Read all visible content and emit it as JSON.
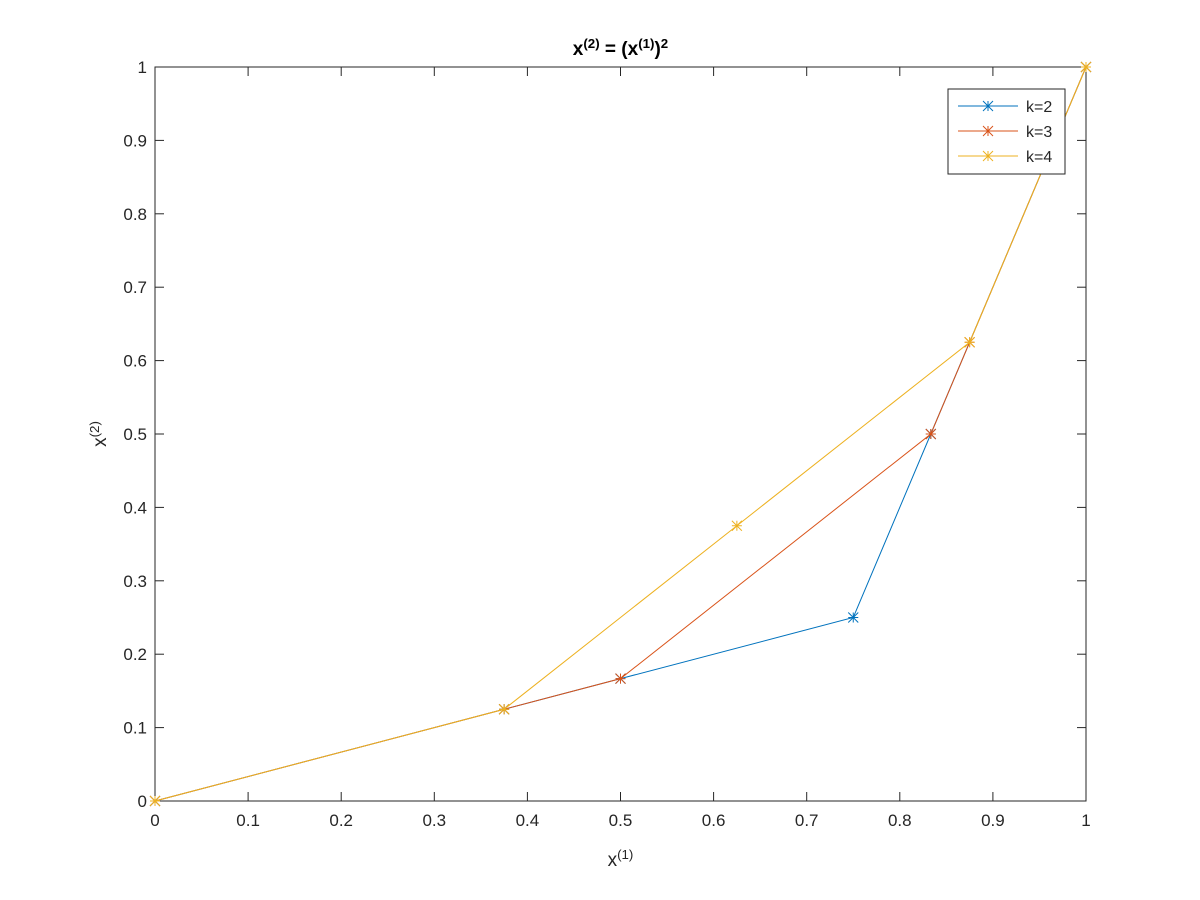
{
  "chart_data": {
    "type": "line",
    "title": [
      {
        "text": "x"
      },
      {
        "text": "(2)",
        "sup": true
      },
      {
        "text": " = (x"
      },
      {
        "text": "(1)",
        "sup": true
      },
      {
        "text": ")"
      },
      {
        "text": "2",
        "sup": true
      }
    ],
    "x_label": [
      {
        "text": "x"
      },
      {
        "text": "(1)",
        "sup": true
      }
    ],
    "y_label": [
      {
        "text": "x"
      },
      {
        "text": "(2)",
        "sup": true
      }
    ],
    "series": [
      {
        "name": "k=2",
        "color": "#0072BD",
        "x": [
          0,
          0.375,
          0.5,
          0.75,
          0.8333,
          1
        ],
        "values": [
          0,
          0.125,
          0.1667,
          0.25,
          0.5,
          1
        ]
      },
      {
        "name": "k=3",
        "color": "#D95319",
        "x": [
          0,
          0.375,
          0.5,
          0.8333,
          0.875,
          1
        ],
        "values": [
          0,
          0.125,
          0.1667,
          0.5,
          0.625,
          1
        ]
      },
      {
        "name": "k=4",
        "color": "#EDB120",
        "x": [
          0,
          0.375,
          0.625,
          0.875,
          1
        ],
        "values": [
          0,
          0.125,
          0.375,
          0.625,
          1
        ]
      }
    ],
    "xlim": [
      0,
      1
    ],
    "ylim": [
      0,
      1
    ],
    "xticks": [
      0,
      0.1,
      0.2,
      0.3,
      0.4,
      0.5,
      0.6,
      0.7,
      0.8,
      0.9,
      1
    ],
    "yticks": [
      0,
      0.1,
      0.2,
      0.3,
      0.4,
      0.5,
      0.6,
      0.7,
      0.8,
      0.9,
      1
    ],
    "marker": "asterisk",
    "legend": "northeast"
  }
}
